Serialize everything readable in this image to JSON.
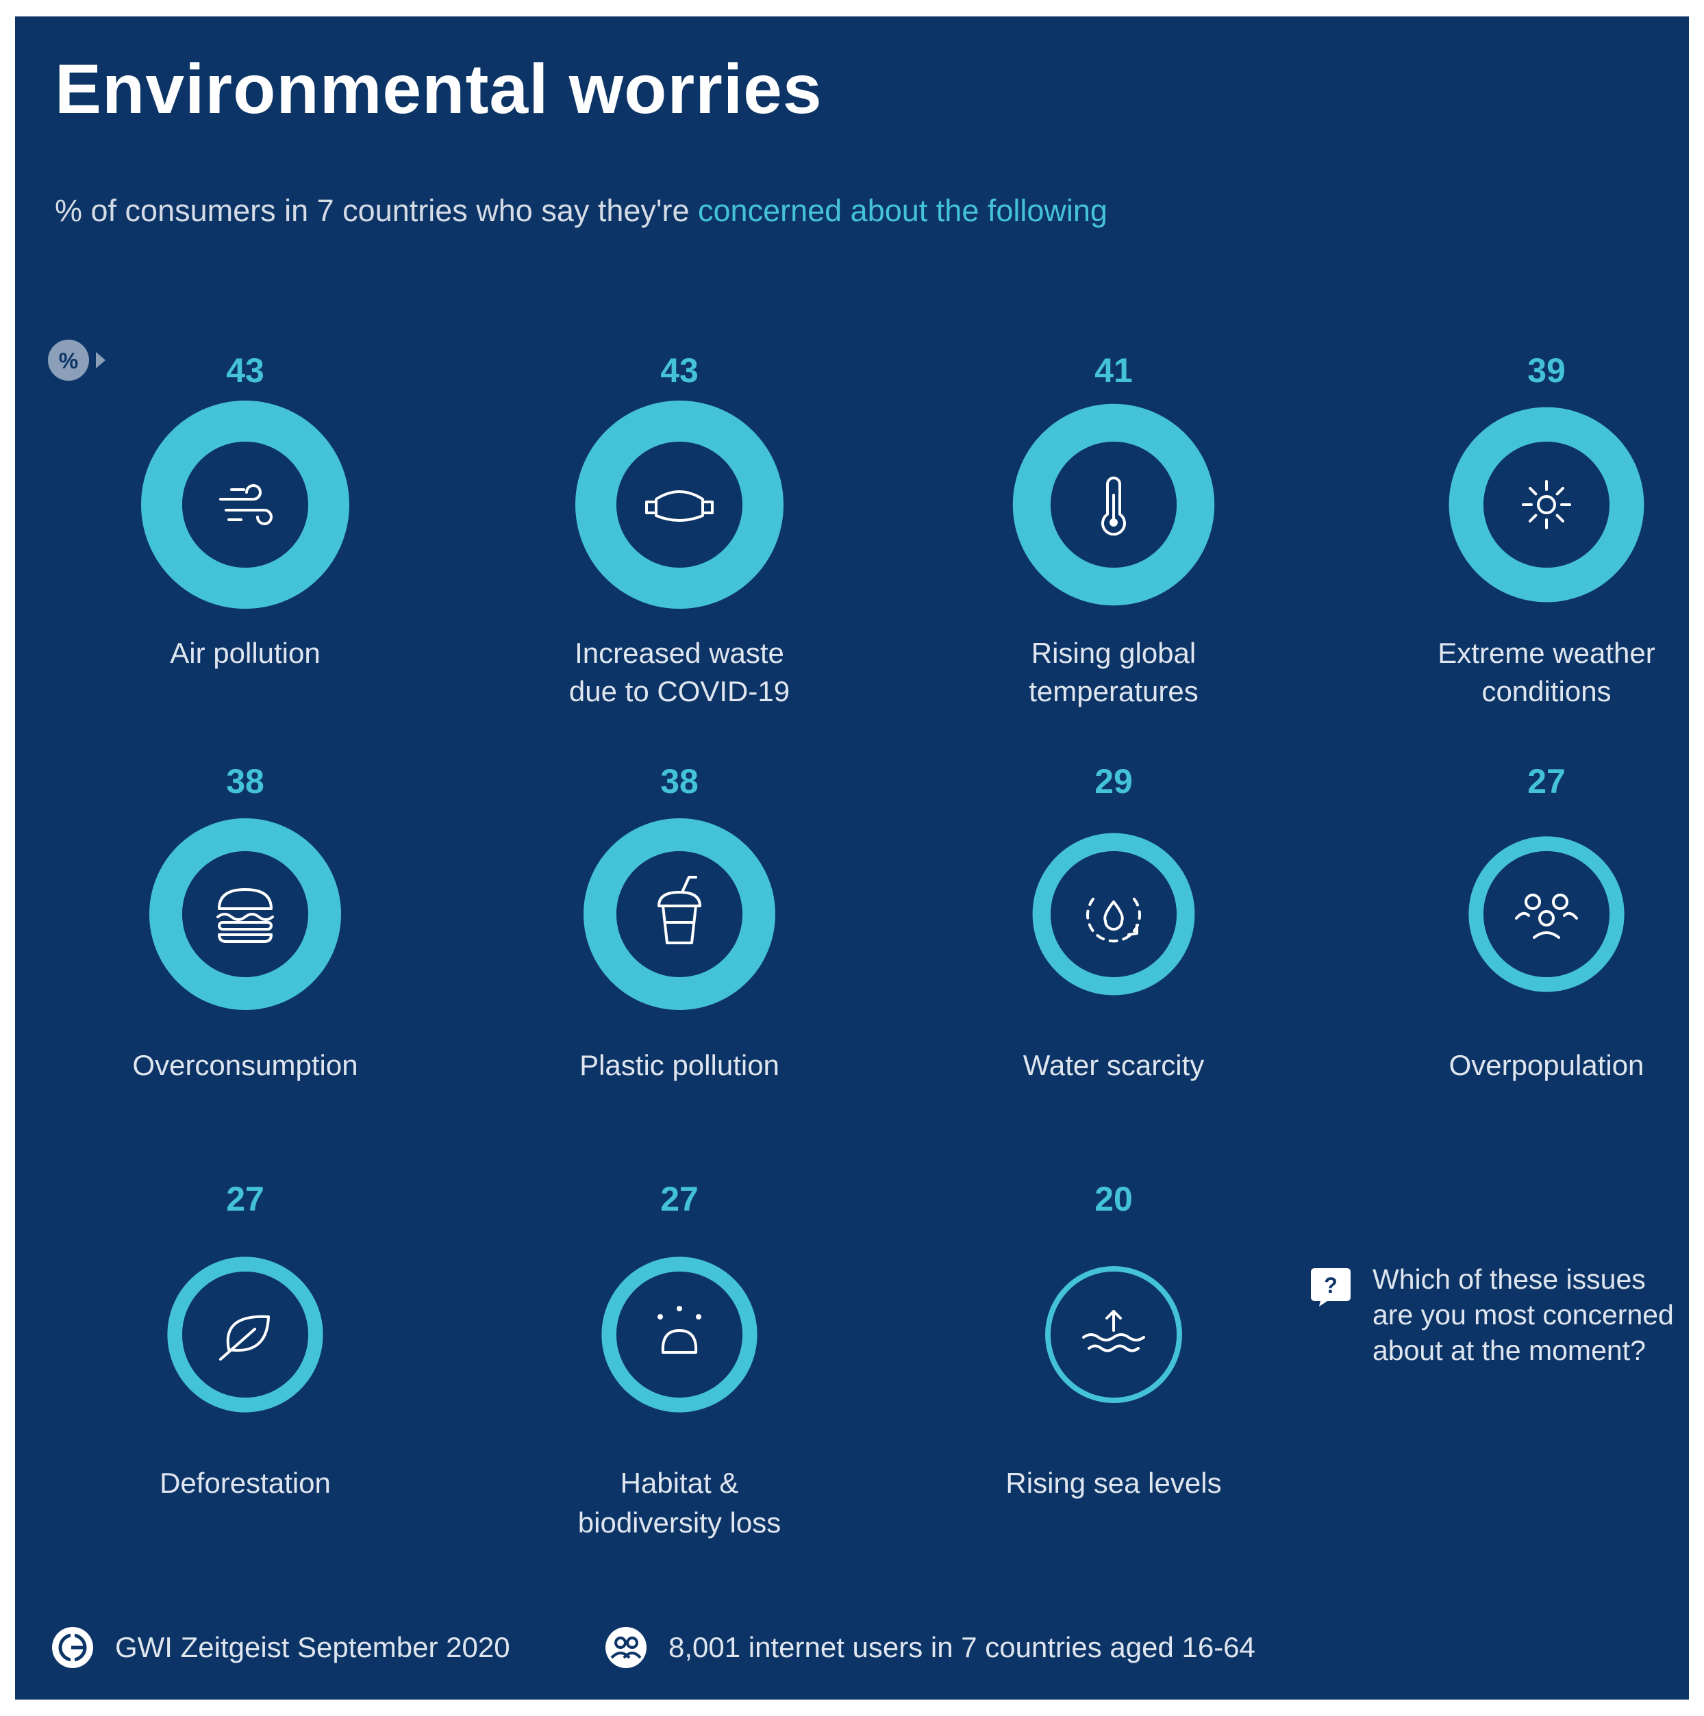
{
  "title": "Environmental worries",
  "subtitle": {
    "lead": "% of consumers in 7 countries who say they're ",
    "highlight": "concerned about the following"
  },
  "percent_badge": "%",
  "question": "Which of these issues are you most concerned about at the moment?",
  "question_badge": "?",
  "footer": {
    "source": "GWI Zeitgeist September 2020",
    "sample": "8,001 internet users in 7 countries aged 16-64"
  },
  "colors": {
    "background": "#0d3466",
    "accent": "#45c3d6",
    "text": "#dfe6ef"
  },
  "chart_data": {
    "type": "bar",
    "title": "Environmental worries",
    "ylabel": "% of consumers",
    "ylim": [
      0,
      100
    ],
    "categories": [
      "Air pollution",
      "Increased waste due to COVID-19",
      "Rising global temperatures",
      "Extreme weather conditions",
      "Overconsumption",
      "Plastic pollution",
      "Water scarcity",
      "Overpopulation",
      "Deforestation",
      "Habitat & biodiversity loss",
      "Rising sea levels"
    ],
    "values": [
      43,
      43,
      41,
      39,
      38,
      38,
      29,
      27,
      27,
      27,
      20
    ],
    "icons": [
      "wind-icon",
      "face-mask-icon",
      "thermometer-icon",
      "sun-icon",
      "burger-icon",
      "plastic-cup-icon",
      "water-drop-icon",
      "people-icon",
      "leaf-icon",
      "habitat-icon",
      "sea-level-icon"
    ],
    "label_lines": [
      [
        "Air pollution"
      ],
      [
        "Increased waste",
        "due to COVID-19"
      ],
      [
        "Rising global",
        "temperatures"
      ],
      [
        "Extreme weather",
        "conditions"
      ],
      [
        "Overconsumption"
      ],
      [
        "Plastic pollution"
      ],
      [
        "Water scarcity"
      ],
      [
        "Overpopulation"
      ],
      [
        "Deforestation"
      ],
      [
        "Habitat &",
        "biodiversity loss"
      ],
      [
        "Rising sea levels"
      ]
    ]
  }
}
